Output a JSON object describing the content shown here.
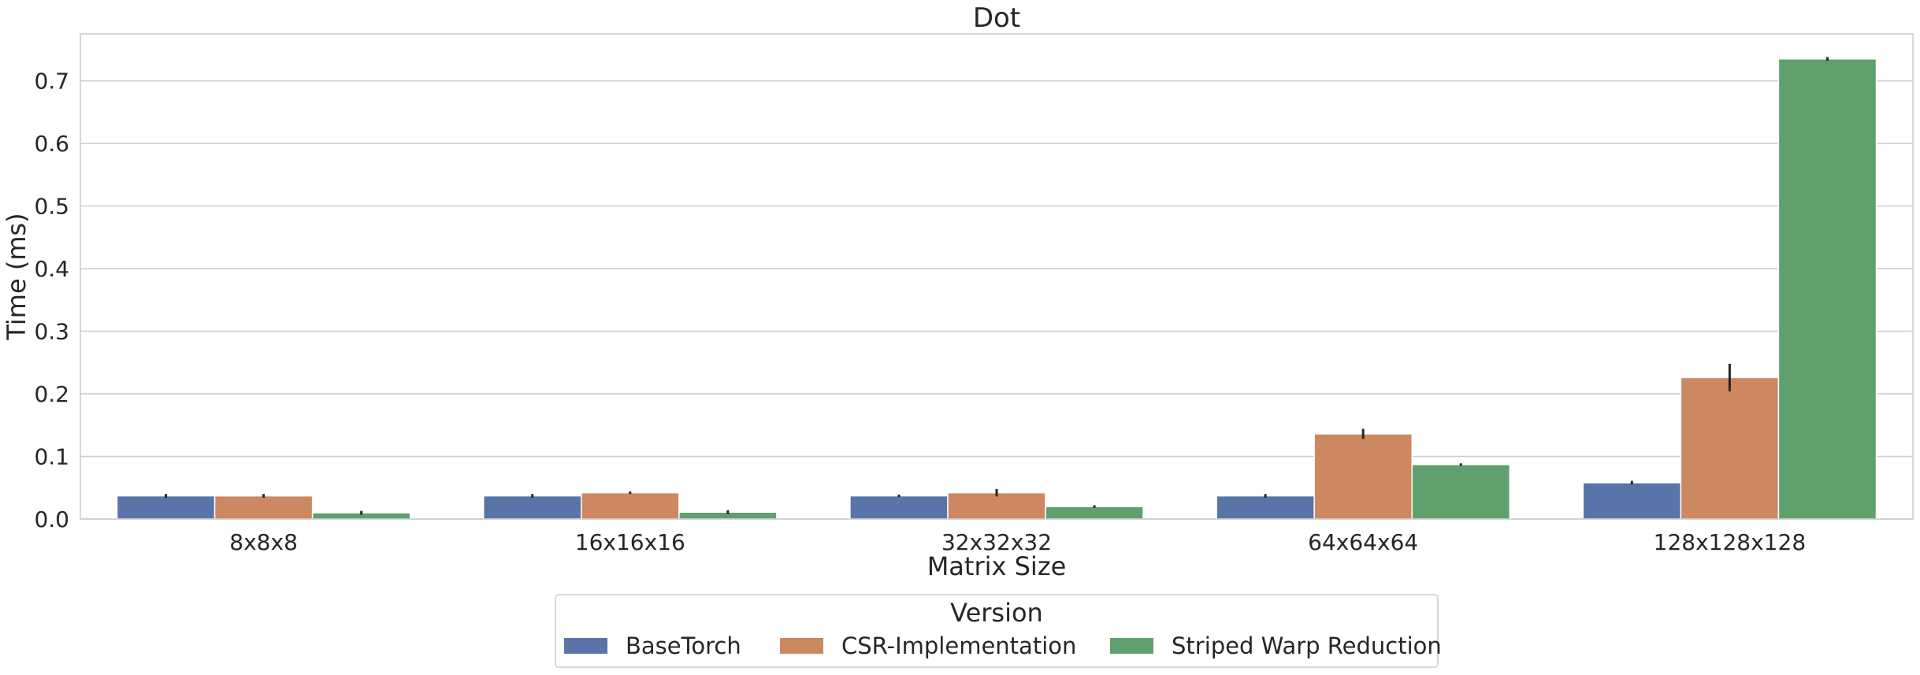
{
  "chart_data": {
    "type": "bar",
    "title": "Dot",
    "xlabel": "Matrix Size",
    "ylabel": "Time (ms)",
    "categories": [
      "8x8x8",
      "16x16x16",
      "32x32x32",
      "64x64x64",
      "128x128x128"
    ],
    "ylim": [
      0,
      0.775
    ],
    "yticks": [
      0.0,
      0.1,
      0.2,
      0.3,
      0.4,
      0.5,
      0.6,
      0.7
    ],
    "ytick_labels": [
      "0.0",
      "0.1",
      "0.2",
      "0.3",
      "0.4",
      "0.5",
      "0.6",
      "0.7"
    ],
    "grid": true,
    "legend": {
      "title": "Version",
      "placement": "bottom-center"
    },
    "series": [
      {
        "name": "BaseTorch",
        "color": "#5874a8",
        "values": [
          0.037,
          0.037,
          0.037,
          0.037,
          0.058
        ],
        "error": [
          0.003,
          0.003,
          0.002,
          0.003,
          0.003
        ]
      },
      {
        "name": "CSR-Implementation",
        "color": "#cd8862",
        "values": [
          0.037,
          0.042,
          0.042,
          0.136,
          0.226
        ],
        "error": [
          0.003,
          0.002,
          0.006,
          0.008,
          0.022
        ]
      },
      {
        "name": "Striped Warp Reduction",
        "color": "#5fa06e",
        "values": [
          0.01,
          0.011,
          0.02,
          0.087,
          0.735
        ],
        "error": [
          0.003,
          0.003,
          0.002,
          0.002,
          0.003
        ]
      }
    ]
  }
}
